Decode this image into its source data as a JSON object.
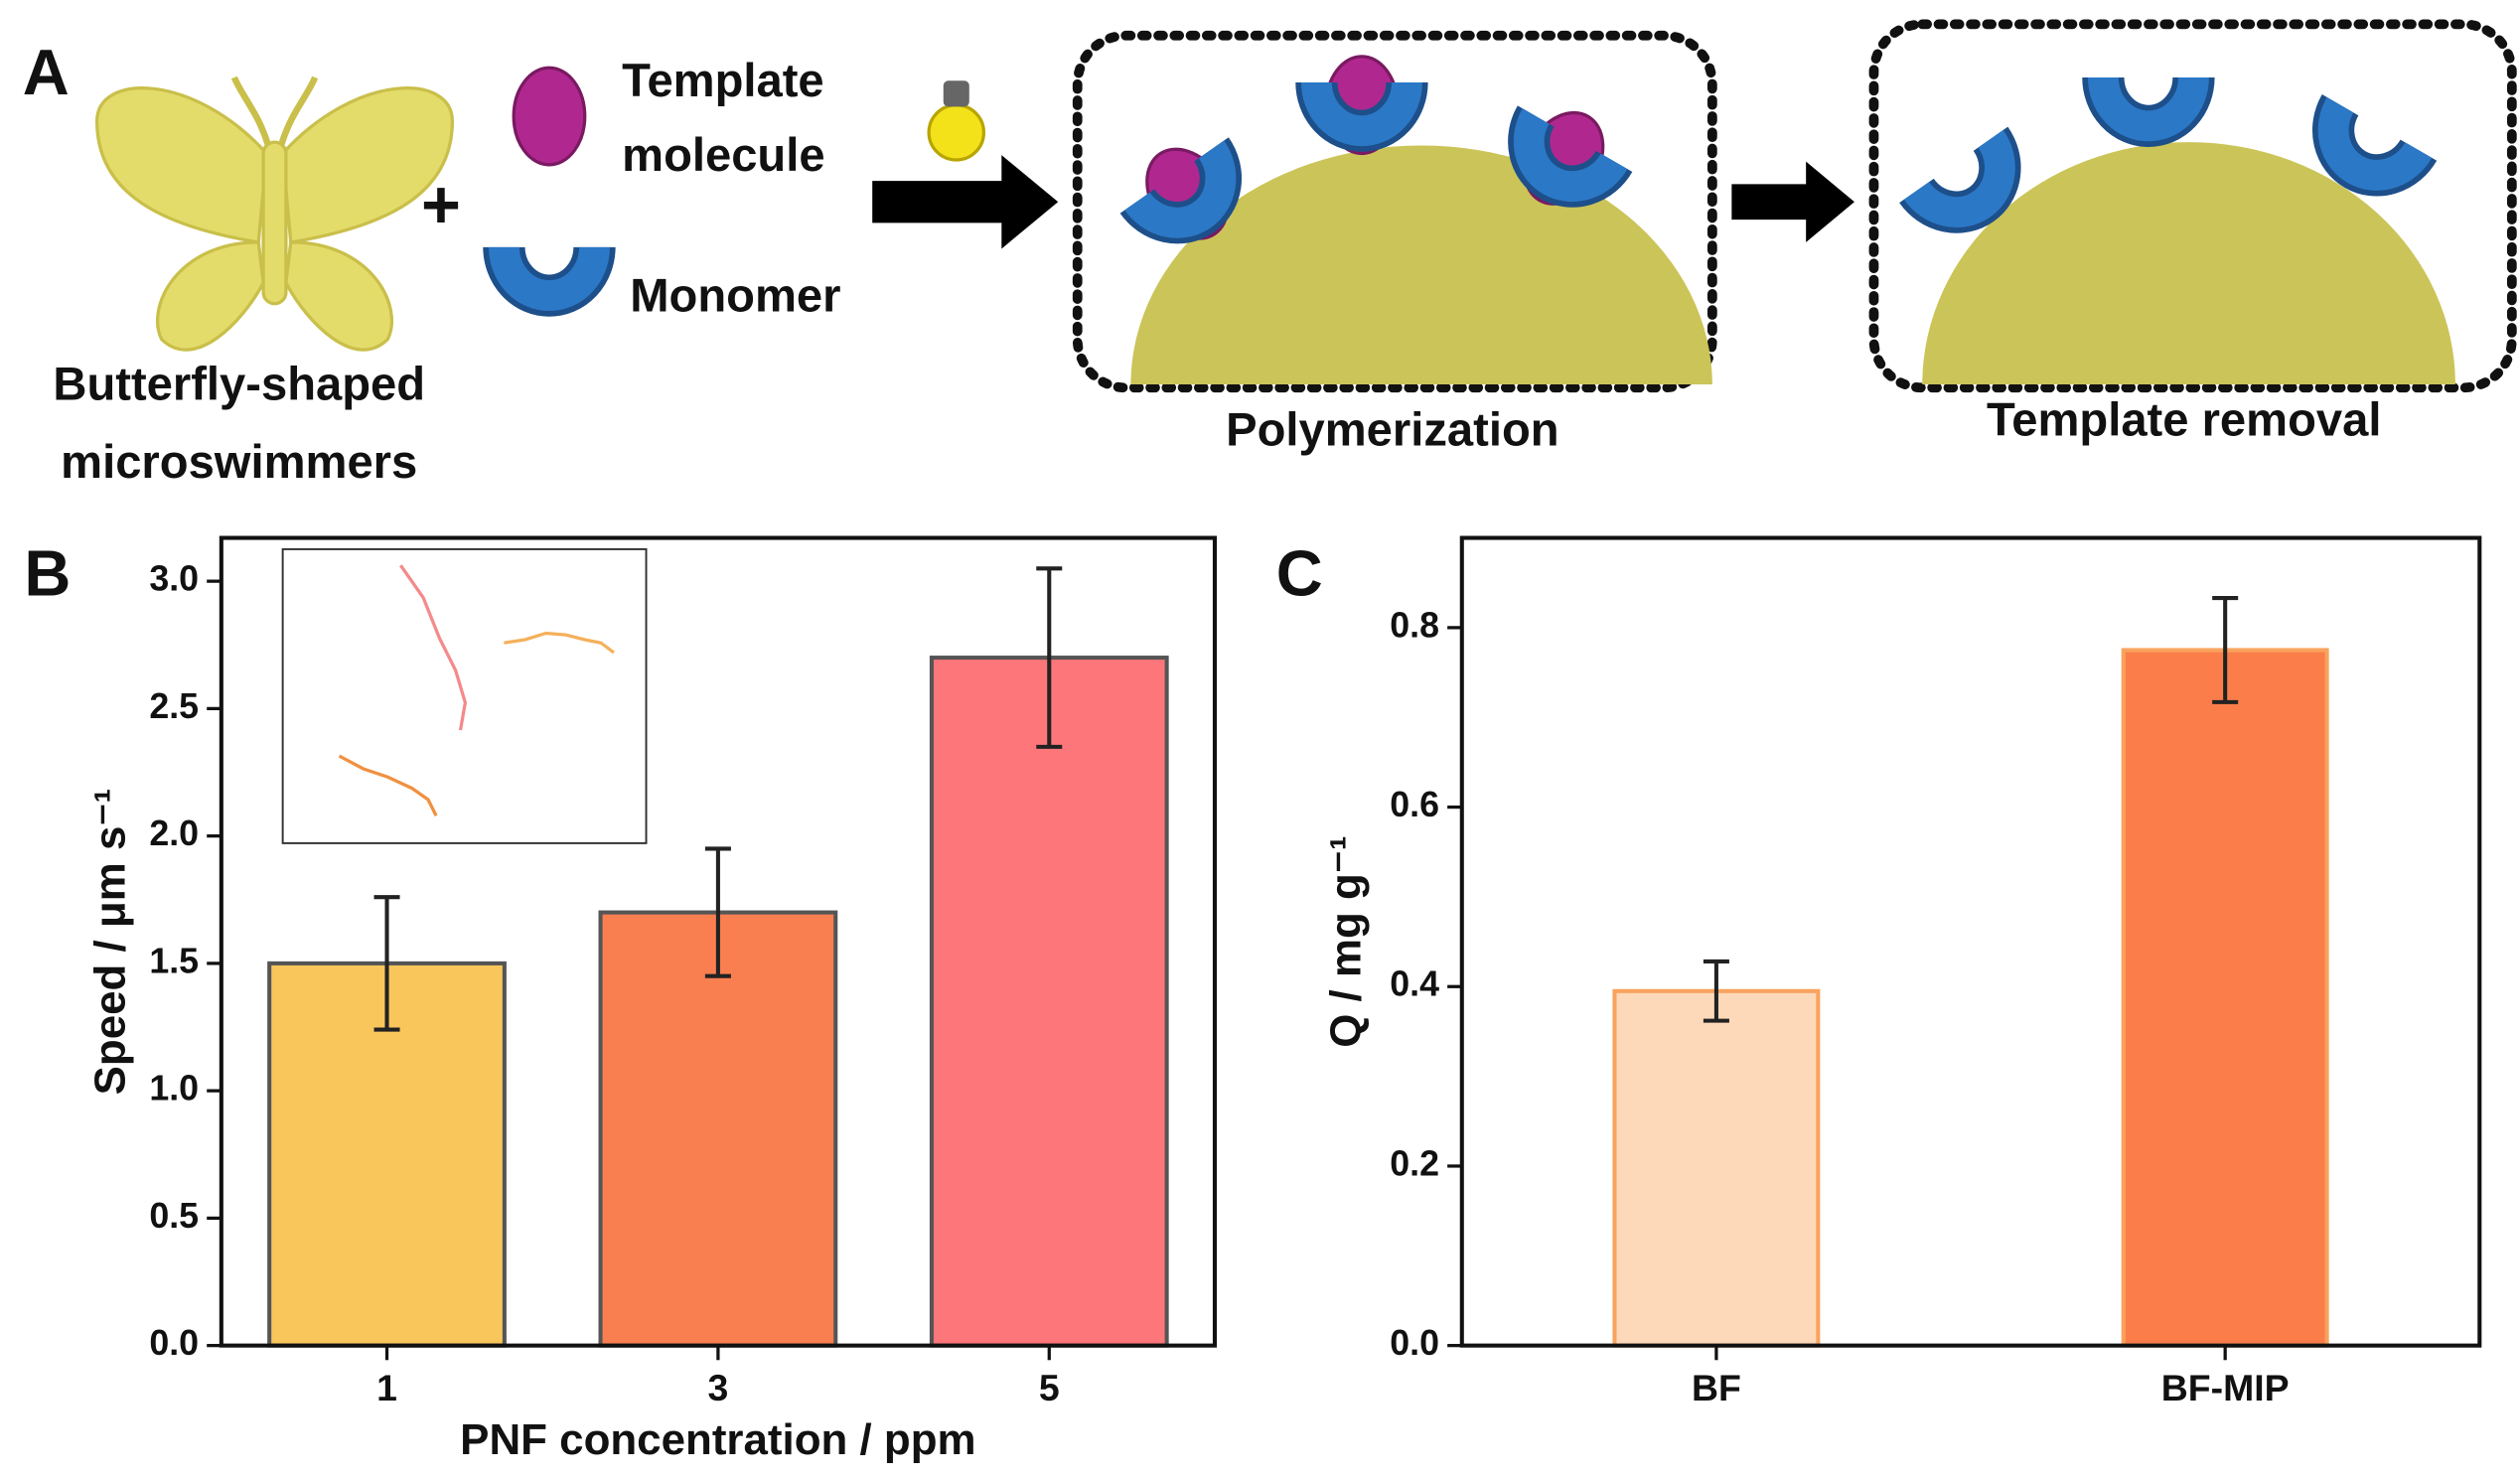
{
  "diagram": {
    "label": "A",
    "plus": "+",
    "template_label": [
      "Template",
      "molecule"
    ],
    "monomer_label": "Monomer",
    "swimmer_label": [
      "Butterfly-shaped",
      "microswimmers"
    ],
    "step1_label": "Polymerization",
    "step2_label": "Template removal"
  },
  "chart_data": [
    {
      "type": "bar",
      "label": "B",
      "xlabel": "PNF concentration / ppm",
      "ylabel": "Speed / μm s⁻¹",
      "categories": [
        "1",
        "3",
        "5"
      ],
      "values": [
        1.5,
        1.7,
        2.7
      ],
      "errors": [
        0.26,
        0.25,
        0.35
      ],
      "colors": [
        "#f9c65c",
        "#f97f50",
        "#fd7679"
      ],
      "edge_color": "#555555",
      "ylim": [
        0,
        3.17
      ],
      "yticks": [
        {
          "value": 0,
          "label": "0.0"
        },
        0.5,
        {
          "value": 1,
          "label": "1.0"
        },
        1.5,
        {
          "value": 2,
          "label": "2.0"
        },
        2.5,
        {
          "value": 3,
          "label": "3.0"
        }
      ]
    },
    {
      "type": "bar",
      "label": "C",
      "ylabel": "Q / mg g⁻¹",
      "categories": [
        "BF",
        "BF-MIP"
      ],
      "values": [
        0.395,
        0.775
      ],
      "errors": [
        0.033,
        0.058
      ],
      "colors": [
        "#fdd9b9",
        "#fb7e4a"
      ],
      "edge_color": "#f9a35e",
      "ylim": [
        0,
        0.9
      ],
      "yticks": [
        {
          "value": 0,
          "label": "0.0"
        },
        0.2,
        0.4,
        0.6,
        0.8
      ]
    }
  ]
}
